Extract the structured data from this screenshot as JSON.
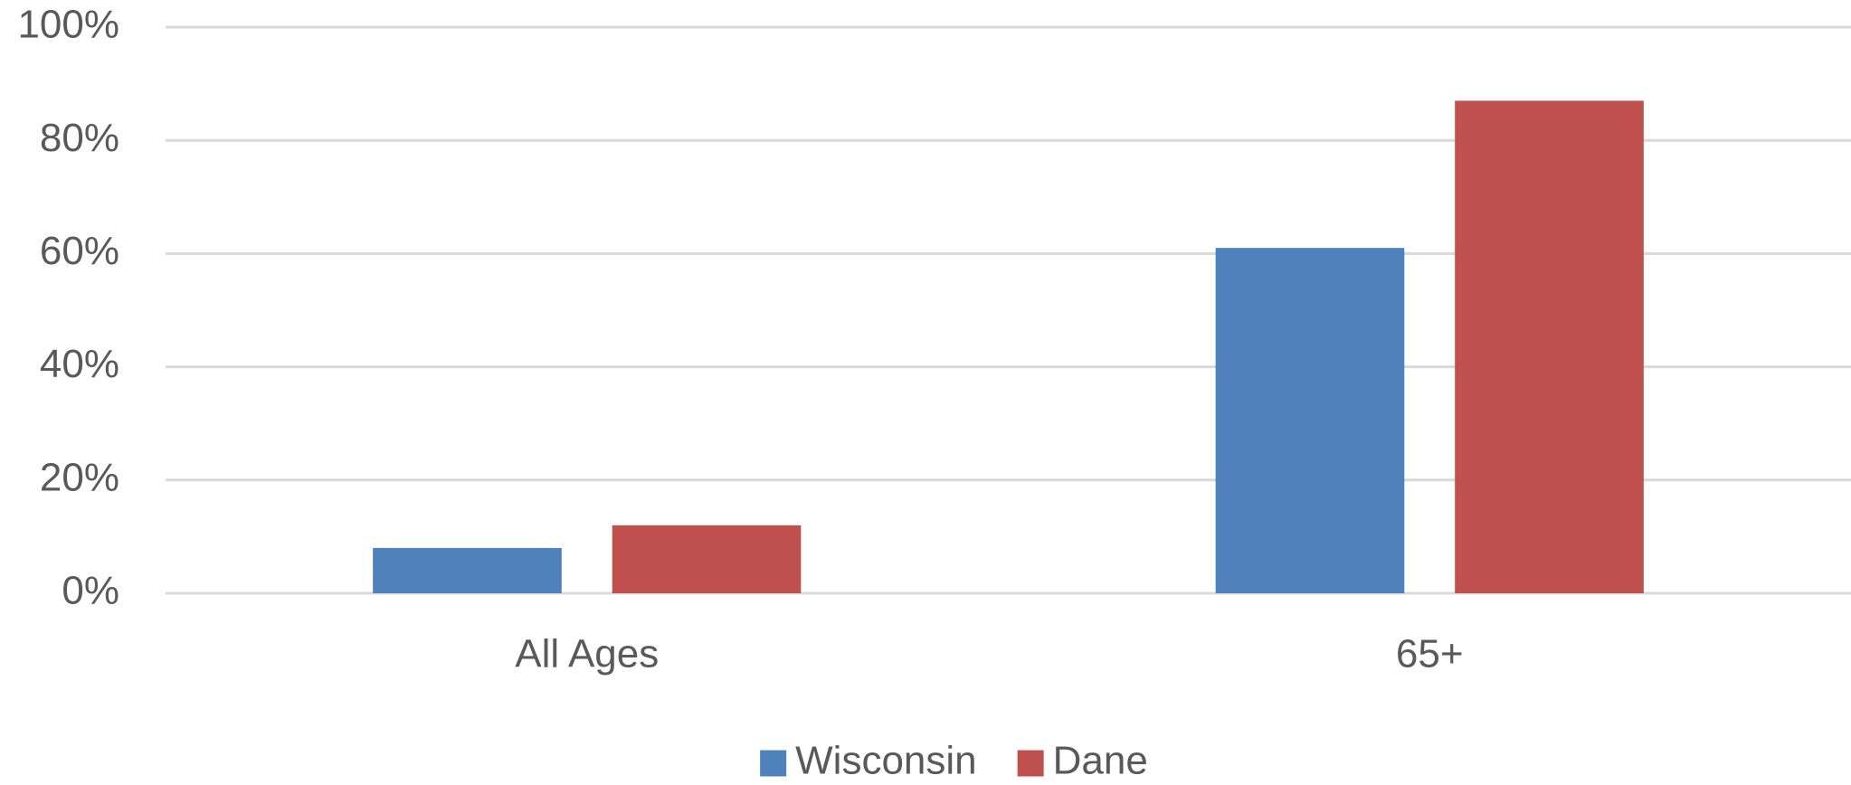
{
  "chart_data": {
    "type": "bar",
    "categories": [
      "All Ages",
      "65+"
    ],
    "series": [
      {
        "name": "Wisconsin",
        "color": "#4f81bd",
        "values": [
          8,
          61
        ]
      },
      {
        "name": "Dane",
        "color": "#c0504d",
        "values": [
          12,
          87
        ]
      }
    ],
    "ylim": [
      0,
      100
    ],
    "yticks": [
      {
        "value": 0,
        "label": "0%"
      },
      {
        "value": 20,
        "label": "20%"
      },
      {
        "value": 40,
        "label": "40%"
      },
      {
        "value": 60,
        "label": "60%"
      },
      {
        "value": 80,
        "label": "80%"
      },
      {
        "value": 100,
        "label": "100%"
      }
    ],
    "grid": true,
    "legend": "bottom"
  }
}
